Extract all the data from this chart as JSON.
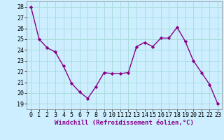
{
  "x": [
    0,
    1,
    2,
    3,
    4,
    5,
    6,
    7,
    8,
    9,
    10,
    11,
    12,
    13,
    14,
    15,
    16,
    17,
    18,
    19,
    20,
    21,
    22,
    23
  ],
  "y": [
    28,
    25,
    24.2,
    23.8,
    22.5,
    20.9,
    20.1,
    19.5,
    20.6,
    21.9,
    21.8,
    21.8,
    21.9,
    24.3,
    24.7,
    24.3,
    25.1,
    25.1,
    26.1,
    24.8,
    23.0,
    21.9,
    20.8,
    19.0
  ],
  "line_color": "#880088",
  "marker": "D",
  "marker_size": 2.2,
  "line_width": 1.0,
  "bg_color": "#cceeff",
  "grid_color": "#aadddd",
  "xlabel": "Windchill (Refroidissement éolien,°C)",
  "xlabel_fontsize": 6.5,
  "tick_fontsize": 6.0,
  "xlim": [
    -0.5,
    23.5
  ],
  "ylim": [
    18.5,
    28.5
  ],
  "yticks": [
    19,
    20,
    21,
    22,
    23,
    24,
    25,
    26,
    27,
    28
  ],
  "xticks": [
    0,
    1,
    2,
    3,
    4,
    5,
    6,
    7,
    8,
    9,
    10,
    11,
    12,
    13,
    14,
    15,
    16,
    17,
    18,
    19,
    20,
    21,
    22,
    23
  ]
}
